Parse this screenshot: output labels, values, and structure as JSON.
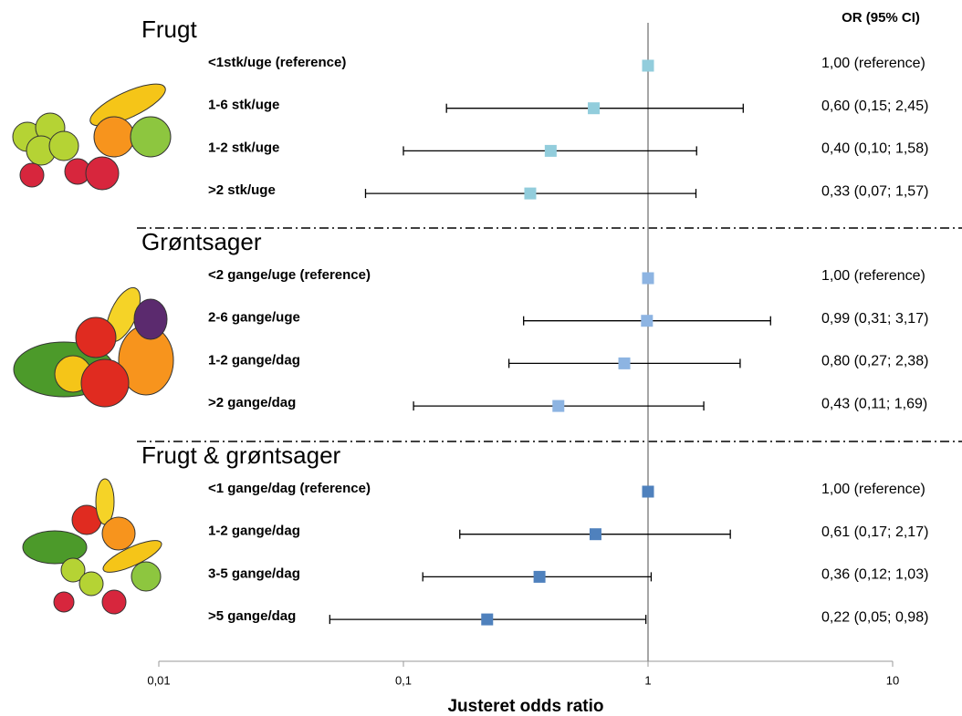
{
  "chart_data": {
    "type": "forest",
    "header": "OR (95% CI)",
    "xlabel": "Justeret odds ratio",
    "log_scale": true,
    "xlim": [
      0.01,
      10
    ],
    "xticks": [
      {
        "value": 0.01,
        "label": "0,01"
      },
      {
        "value": 0.1,
        "label": "0,1"
      },
      1,
      10
    ],
    "groups": [
      {
        "title": "Frugt",
        "color": "#92cddc",
        "rows": [
          {
            "label": "<1stk/uge (reference)",
            "or": 1,
            "lo": null,
            "hi": null,
            "or_label": "1,00 (reference)"
          },
          {
            "label": "1-6 stk/uge",
            "or": 0.6,
            "lo": 0.15,
            "hi": 2.45,
            "or_label": "0,60 (0,15; 2,45)"
          },
          {
            "label": "1-2 stk/uge",
            "or": 0.4,
            "lo": 0.1,
            "hi": 1.58,
            "or_label": "0,40 (0,10; 1,58)"
          },
          {
            "label": ">2 stk/uge",
            "or": 0.33,
            "lo": 0.07,
            "hi": 1.57,
            "or_label": "0,33 (0,07; 1,57)"
          }
        ]
      },
      {
        "title": "Grøntsager",
        "color": "#8db4e2",
        "rows": [
          {
            "label": "<2 gange/uge (reference)",
            "or": 1,
            "lo": null,
            "hi": null,
            "or_label": "1,00 (reference)"
          },
          {
            "label": "2-6 gange/uge",
            "or": 0.99,
            "lo": 0.31,
            "hi": 3.17,
            "or_label": "0,99 (0,31; 3,17)"
          },
          {
            "label": "1-2 gange/dag",
            "or": 0.8,
            "lo": 0.27,
            "hi": 2.38,
            "or_label": "0,80 (0,27; 2,38)"
          },
          {
            "label": ">2 gange/dag",
            "or": 0.43,
            "lo": 0.11,
            "hi": 1.69,
            "or_label": "0,43 (0,11; 1,69)"
          }
        ]
      },
      {
        "title": "Frugt & grøntsager",
        "color": "#4f81bd",
        "rows": [
          {
            "label": "<1 gange/dag (reference)",
            "or": 1,
            "lo": null,
            "hi": null,
            "or_label": "1,00 (reference)"
          },
          {
            "label": "1-2 gange/dag",
            "or": 0.61,
            "lo": 0.17,
            "hi": 2.17,
            "or_label": "0,61 (0,17; 2,17)"
          },
          {
            "label": "3-5 gange/dag",
            "or": 0.36,
            "lo": 0.12,
            "hi": 1.03,
            "or_label": "0,36 (0,12; 1,03)"
          },
          {
            "label": ">5 gange/dag",
            "or": 0.22,
            "lo": 0.05,
            "hi": 0.98,
            "or_label": "0,22 (0,05; 0,98)"
          }
        ]
      }
    ]
  }
}
